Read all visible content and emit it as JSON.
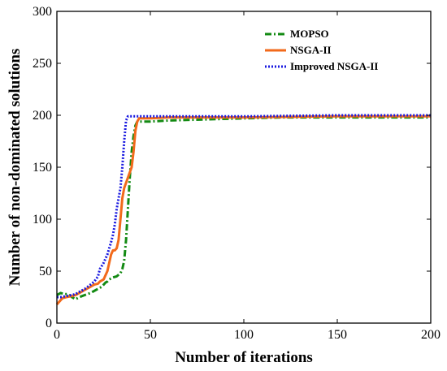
{
  "chart_data": {
    "type": "line",
    "xlabel": "Number of iterations",
    "ylabel": "Number of non-dominated solutions",
    "xlim": [
      0,
      200
    ],
    "ylim": [
      0,
      300
    ],
    "xticks": [
      0,
      50,
      100,
      150,
      200
    ],
    "yticks": [
      0,
      50,
      100,
      150,
      200,
      250,
      300
    ],
    "grid": false,
    "legend_position": "top-right",
    "series": [
      {
        "name": "MOPSO",
        "color": "#138a13",
        "style": "dash-dot",
        "x": [
          0,
          1,
          2,
          4,
          6,
          8,
          10,
          12,
          15,
          18,
          20,
          22,
          24,
          26,
          27,
          28,
          30,
          32,
          34,
          35,
          36,
          37,
          38,
          39,
          40,
          41,
          42,
          43,
          44,
          45,
          50,
          60,
          80,
          100,
          120,
          150,
          200
        ],
        "y": [
          27,
          28,
          29,
          28,
          28,
          25,
          23,
          25,
          27,
          29,
          31,
          33,
          35,
          39,
          40,
          42,
          44,
          45,
          48,
          52,
          60,
          80,
          110,
          140,
          165,
          180,
          190,
          194,
          194,
          194,
          194,
          195,
          196,
          197,
          198,
          198,
          198
        ]
      },
      {
        "name": "NSGA-II",
        "color": "#f26a1b",
        "style": "solid",
        "x": [
          0,
          1,
          2,
          3,
          5,
          8,
          10,
          12,
          15,
          18,
          20,
          22,
          23,
          25,
          27,
          28,
          29,
          30,
          31,
          32,
          33,
          34,
          35,
          36,
          37,
          38,
          39,
          40,
          41,
          42,
          43,
          44,
          45,
          50,
          60,
          100,
          150,
          200
        ],
        "y": [
          18,
          20,
          22,
          24,
          25,
          26,
          27,
          29,
          32,
          35,
          37,
          38,
          40,
          42,
          50,
          58,
          66,
          70,
          70,
          72,
          80,
          100,
          120,
          130,
          135,
          140,
          145,
          150,
          165,
          185,
          194,
          197,
          197,
          197,
          198,
          198,
          199,
          199
        ]
      },
      {
        "name": "Improved NSGA-II",
        "color": "#1a1ae0",
        "style": "dotted",
        "x": [
          0,
          1,
          2,
          5,
          8,
          10,
          12,
          15,
          18,
          20,
          22,
          23,
          24,
          25,
          26,
          27,
          28,
          29,
          30,
          31,
          32,
          33,
          34,
          35,
          36,
          37,
          38,
          40,
          50,
          100,
          150,
          200
        ],
        "y": [
          25,
          25,
          25,
          26,
          27,
          28,
          30,
          33,
          37,
          40,
          45,
          52,
          55,
          58,
          62,
          66,
          72,
          78,
          85,
          95,
          110,
          120,
          130,
          150,
          175,
          195,
          199,
          199,
          199,
          199,
          200,
          200
        ]
      }
    ]
  }
}
